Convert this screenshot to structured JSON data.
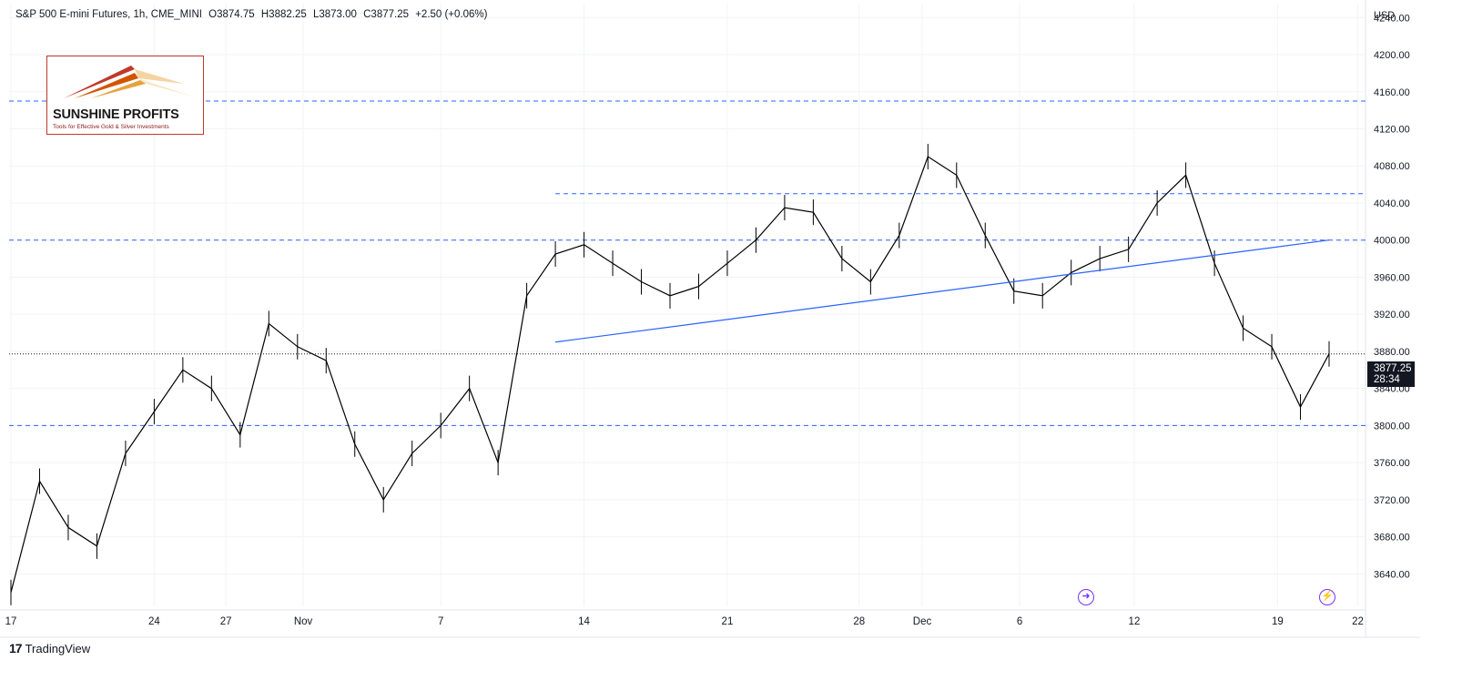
{
  "header": {
    "symbol": "S&P 500 E-mini Futures, 1h, CME_MINI",
    "open": "O3874.75",
    "high": "H3882.25",
    "low": "L3873.00",
    "close": "C3877.25",
    "change": "+2.50 (+0.06%)"
  },
  "logo": {
    "name": "SUNSHINE PROFITS",
    "tagline": "Tools for Effective Gold & Silver Investments"
  },
  "footer": {
    "brand": "TradingView"
  },
  "price_label": {
    "price": "3877.25",
    "countdown": "28:34"
  },
  "icons": [
    "forward-arrow-icon",
    "lightning-icon"
  ],
  "colors": {
    "candle": "#000000",
    "level_line": "#2962ff",
    "trend_line": "#2962ff",
    "price_label_bg": "#131722",
    "event_icon": "#7b2ff7"
  },
  "chart_data": {
    "type": "line",
    "title": "S&P 500 E-mini Futures, 1h, CME_MINI",
    "currency": "USD",
    "ylim": [
      3605,
      4255
    ],
    "y_ticks": [
      "4240.00",
      "4200.00",
      "4160.00",
      "4120.00",
      "4080.00",
      "4040.00",
      "4000.00",
      "3960.00",
      "3920.00",
      "3880.00",
      "3840.00",
      "3800.00",
      "3760.00",
      "3720.00",
      "3680.00",
      "3640.00"
    ],
    "x_ticks": [
      "17",
      "24",
      "27",
      "Nov",
      "7",
      "14",
      "21",
      "28",
      "Dec",
      "6",
      "12",
      "19",
      "22"
    ],
    "series": [
      {
        "x": [
          "Oct 17",
          "Oct 18",
          "Oct 19",
          "Oct 20",
          "Oct 21",
          "Oct 24",
          "Oct 25",
          "Oct 26",
          "Oct 27",
          "Oct 28",
          "Oct 31",
          "Nov 1",
          "Nov 2",
          "Nov 3",
          "Nov 4",
          "Nov 7",
          "Nov 8",
          "Nov 9",
          "Nov 10",
          "Nov 11",
          "Nov 14",
          "Nov 15",
          "Nov 16",
          "Nov 17",
          "Nov 18",
          "Nov 21",
          "Nov 22",
          "Nov 23",
          "Nov 25",
          "Nov 28",
          "Nov 29",
          "Nov 30",
          "Dec 1",
          "Dec 2",
          "Dec 5",
          "Dec 6",
          "Dec 7",
          "Dec 8",
          "Dec 9",
          "Dec 12",
          "Dec 13",
          "Dec 14",
          "Dec 15",
          "Dec 16",
          "Dec 19",
          "Dec 20",
          "Dec 21"
        ],
        "values": [
          3620,
          3740,
          3690,
          3670,
          3770,
          3815,
          3860,
          3840,
          3790,
          3910,
          3885,
          3870,
          3780,
          3720,
          3770,
          3800,
          3840,
          3760,
          3940,
          3985,
          3995,
          3975,
          3955,
          3940,
          3950,
          3975,
          4000,
          4035,
          4030,
          3980,
          3955,
          4005,
          4090,
          4070,
          4005,
          3945,
          3940,
          3965,
          3980,
          3990,
          4040,
          4070,
          3975,
          3905,
          3885,
          3820,
          3877.25
        ]
      }
    ],
    "horizontal_levels": [
      4150,
      4050,
      4000,
      3880,
      3800
    ],
    "trend_line": {
      "from": [
        "Nov 11",
        3890
      ],
      "to": [
        "Dec 21",
        4000
      ]
    },
    "grid": true
  }
}
